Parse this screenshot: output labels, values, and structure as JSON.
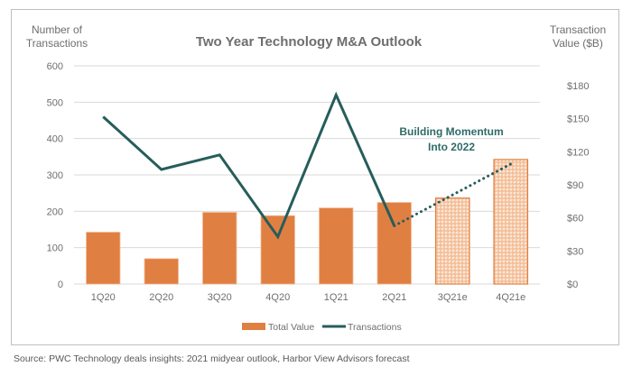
{
  "chart_data": {
    "type": "bar+line",
    "title": "Two Year Technology M&A Outlook",
    "ylabel_left": "Number of Transactions",
    "ylabel_right": "Transaction Value ($B)",
    "categories": [
      "1Q20",
      "2Q20",
      "3Q20",
      "4Q20",
      "1Q21",
      "2Q21",
      "3Q21e",
      "4Q21e"
    ],
    "left_axis": {
      "ticks": [
        0,
        100,
        200,
        300,
        400,
        500,
        600
      ],
      "tick_labels": [
        "0",
        "100",
        "200",
        "300",
        "400",
        "500",
        "600"
      ],
      "ylim": [
        0,
        600
      ]
    },
    "right_axis": {
      "ticks": [
        0,
        30,
        60,
        90,
        120,
        150,
        180
      ],
      "tick_labels": [
        "$0",
        "$30",
        "$60",
        "$90",
        "$120",
        "$150",
        "$180"
      ],
      "ylim": [
        0,
        198
      ]
    },
    "series": [
      {
        "name": "Total Value",
        "type": "bar",
        "axis": "right",
        "color": "#e07f42",
        "values": [
          47,
          23,
          65,
          62,
          69,
          74,
          78,
          113
        ],
        "estimate": [
          false,
          false,
          false,
          false,
          false,
          false,
          true,
          true
        ]
      },
      {
        "name": "Transactions",
        "type": "line",
        "axis": "left",
        "color": "#265d5b",
        "values": [
          460,
          315,
          355,
          130,
          520,
          160,
          null,
          330
        ],
        "projected_segment": {
          "from": "2Q21",
          "to": "4Q21e",
          "style": "dotted"
        }
      }
    ],
    "annotation": {
      "text_line1": "Building Momentum",
      "text_line2": "Into 2022",
      "color": "#2e6b68"
    },
    "legend": {
      "position": "bottom",
      "entries": [
        "Total Value",
        "Transactions"
      ]
    },
    "grid": true
  },
  "source_note": "Source: PWC Technology deals insights: 2021 midyear outlook, Harbor View Advisors forecast"
}
